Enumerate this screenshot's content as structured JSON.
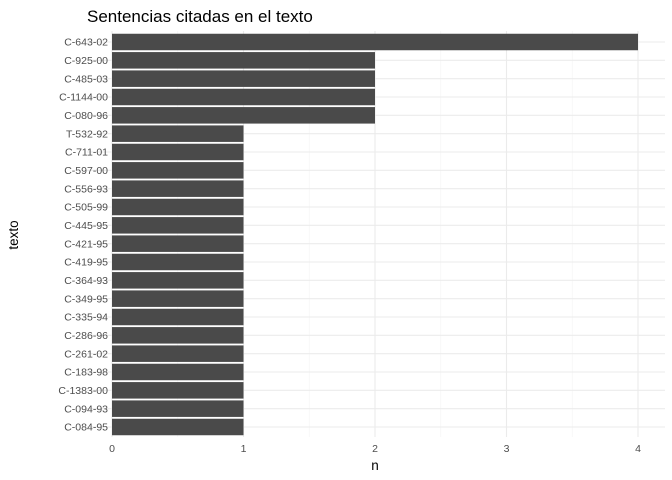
{
  "chart_data": {
    "type": "bar",
    "orientation": "horizontal",
    "title": "Sentencias citadas en el texto",
    "xlabel": "n",
    "ylabel": "texto",
    "xlim": [
      0,
      4
    ],
    "xticks": [
      0,
      1,
      2,
      3,
      4
    ],
    "grid": true,
    "bar_color": "#4a4a4a",
    "categories": [
      "C-643-02",
      "C-925-00",
      "C-485-03",
      "C-1144-00",
      "C-080-96",
      "T-532-92",
      "C-711-01",
      "C-597-00",
      "C-556-93",
      "C-505-99",
      "C-445-95",
      "C-421-95",
      "C-419-95",
      "C-364-93",
      "C-349-95",
      "C-335-94",
      "C-286-96",
      "C-261-02",
      "C-183-98",
      "C-1383-00",
      "C-094-93",
      "C-084-95"
    ],
    "values": [
      4,
      2,
      2,
      2,
      2,
      1,
      1,
      1,
      1,
      1,
      1,
      1,
      1,
      1,
      1,
      1,
      1,
      1,
      1,
      1,
      1,
      1
    ]
  }
}
